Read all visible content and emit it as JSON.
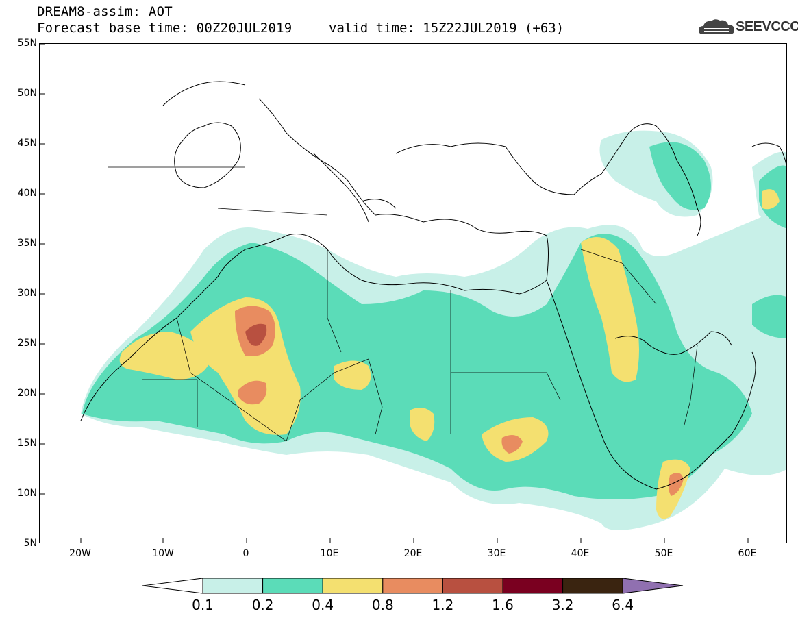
{
  "header": {
    "title_line1": "DREAM8-assim: AOT",
    "title_line2": "Forecast base time: 00Z20JUL2019",
    "valid_time": "valid time: 15Z22JUL2019 (+63)",
    "logo_text": "SEEVCCC"
  },
  "axes": {
    "lat_labels": [
      "55N",
      "50N",
      "45N",
      "40N",
      "35N",
      "30N",
      "25N",
      "20N",
      "15N",
      "10N",
      "5N"
    ],
    "lon_labels": [
      "20W",
      "10W",
      "0",
      "10E",
      "20E",
      "30E",
      "40E",
      "50E",
      "60E"
    ]
  },
  "colorbar": {
    "labels": [
      "0.1",
      "0.2",
      "0.4",
      "0.8",
      "1.2",
      "1.6",
      "3.2",
      "6.4"
    ],
    "colors": [
      "#ffffff",
      "#c8f0e8",
      "#5bdcb8",
      "#f4e070",
      "#e88c60",
      "#b85040",
      "#7a0020",
      "#3a2410",
      "#9070b0"
    ]
  }
}
